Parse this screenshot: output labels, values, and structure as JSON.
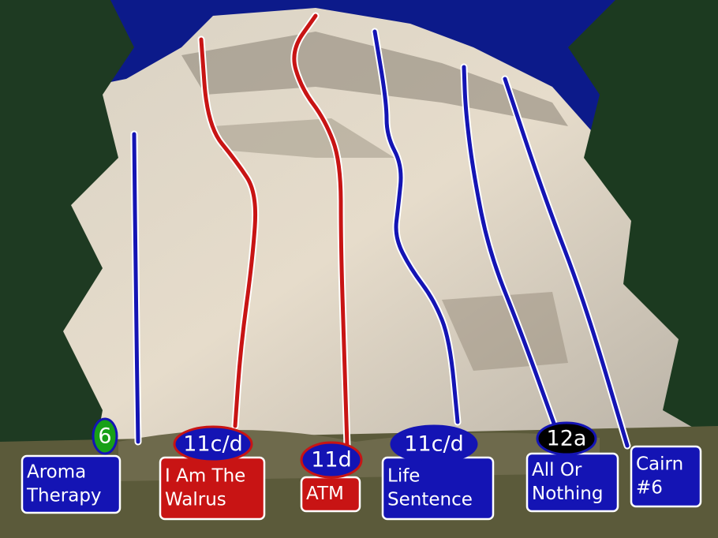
{
  "routes": [
    {
      "name_lines": [
        "Aroma",
        "Therapy"
      ],
      "grade": "6",
      "color": "#1414b4",
      "badge_color": "#18a018"
    },
    {
      "name_lines": [
        "I Am The",
        "Walrus"
      ],
      "grade": "11c/d",
      "color": "#c81414",
      "badge_color": "#1414b4"
    },
    {
      "name_lines": [
        "ATM"
      ],
      "grade": "11d",
      "color": "#c81414",
      "badge_color": "#1414b4"
    },
    {
      "name_lines": [
        "Life",
        "Sentence"
      ],
      "grade": "11c/d",
      "color": "#1414b4",
      "badge_color": "#1414b4"
    },
    {
      "name_lines": [
        "All Or",
        "Nothing"
      ],
      "grade": "12a",
      "color": "#1414b4",
      "badge_color": "#000000"
    },
    {
      "name_lines": [
        "Cairn",
        "#6"
      ],
      "color": "#1414b4"
    }
  ]
}
